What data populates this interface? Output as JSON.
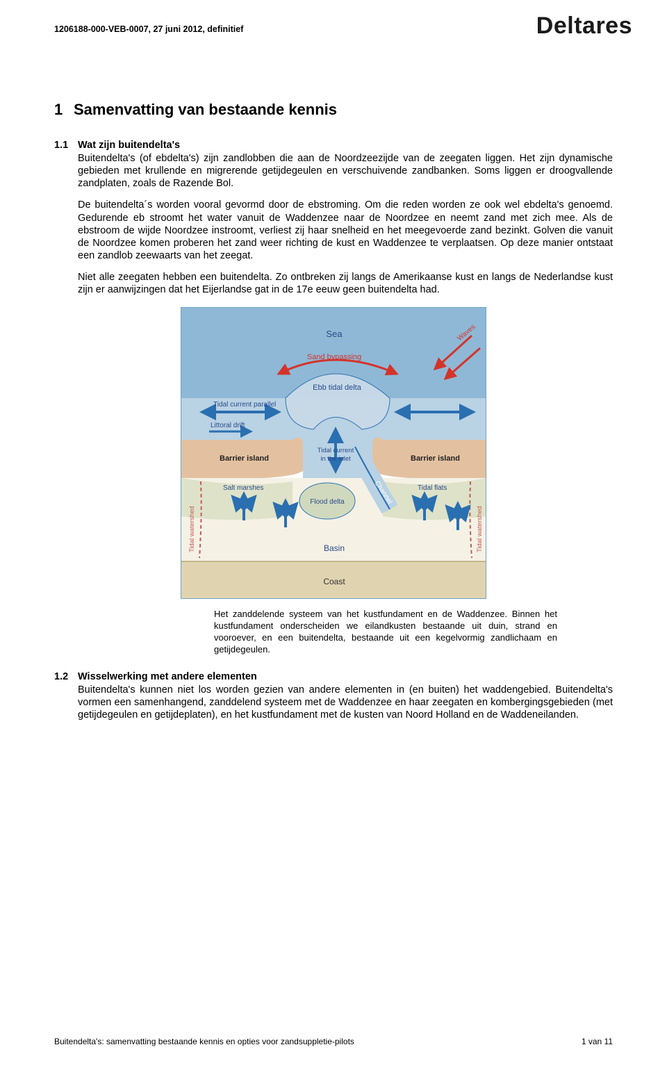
{
  "header": {
    "reference": "1206188-000-VEB-0007, 27 juni 2012, definitief",
    "logo": "Deltares"
  },
  "section": {
    "number": "1",
    "title": "Samenvatting van bestaande kennis"
  },
  "sub1": {
    "number": "1.1",
    "title": "Wat zijn buitendelta's",
    "p1": "Buitendelta's (of ebdelta's) zijn zandlobben die aan de Noordzeezijde van de zeegaten liggen. Het zijn dynamische gebieden met krullende en migrerende getijdegeulen en verschuivende zandbanken. Soms liggen er droogvallende zandplaten, zoals de Razende Bol.",
    "p2": "De buitendelta´s worden vooral gevormd door de ebstroming. Om die reden worden ze ook wel ebdelta's genoemd. Gedurende eb stroomt het water vanuit de Waddenzee naar de Noordzee en neemt zand met zich mee. Als de ebstroom de wijde Noordzee instroomt, verliest zij haar snelheid en het meegevoerde zand bezinkt. Golven die vanuit de Noordzee komen proberen het zand weer richting de kust en Waddenzee te verplaatsen. Op deze manier ontstaat een zandlob zeewaarts van het zeegat.",
    "p3": "Niet alle zeegaten hebben een buitendelta. Zo ontbreken zij langs de Amerikaanse kust en langs de Nederlandse kust zijn er aanwijzingen dat het Eijerlandse gat in de 17e eeuw geen buitendelta had."
  },
  "diagram": {
    "colors": {
      "sea": "#8fb8d6",
      "shallow": "#b9d2e4",
      "sand": "#e3c1a0",
      "marsh": "#d9dfc3",
      "basin": "#f5f1e5",
      "coast": "#e0d4b0",
      "delta": "#c8dae8",
      "flood_delta": "#d0d9be",
      "arrow_blue": "#2a6fb0",
      "arrow_red": "#d4332a",
      "watershed": "#c25a5a",
      "label_blue": "#2a4a8c",
      "border": "#6fa0c4"
    },
    "labels": {
      "sea": "Sea",
      "sand_bypassing": "Sand bypassing",
      "waves": "Waves",
      "ebb_tidal_delta": "Ebb tidal delta",
      "tidal_current_parallel": "Tidal current parallel",
      "littoral_drift": "Littoral drift",
      "barrier_island_l": "Barrier island",
      "barrier_island_r": "Barrier island",
      "tidal_current_inlet": "Tidal current\nin the inlet",
      "channel": "Channel",
      "salt_marshes": "Salt marshes",
      "flood_delta": "Flood delta",
      "tidal_flats": "Tidal flats",
      "tidal_watershed_l": "Tidal watershed",
      "tidal_watershed_r": "Tidal watershed",
      "basin": "Basin",
      "coast": "Coast"
    }
  },
  "caption": "Het zanddelende systeem van het kustfundament en de Waddenzee. Binnen het kustfundament onderscheiden we eilandkusten bestaande uit duin, strand en vooroever, en een buitendelta, bestaande uit een kegelvormig zandlichaam en getijdegeulen.",
  "sub2": {
    "number": "1.2",
    "title": "Wisselwerking met andere elementen",
    "p1": "Buitendelta's kunnen niet los worden gezien van andere elementen in (en buiten) het waddengebied. Buitendelta's vormen een samenhangend, zanddelend systeem met de Waddenzee en haar zeegaten en kombergingsgebieden (met getijdegeulen en getijdeplaten), en het kustfundament met de kusten van Noord Holland en de Waddeneilanden."
  },
  "footer": {
    "left": "Buitendelta's: samenvatting bestaande kennis en opties voor zandsuppletie-pilots",
    "right": "1 van 11"
  }
}
